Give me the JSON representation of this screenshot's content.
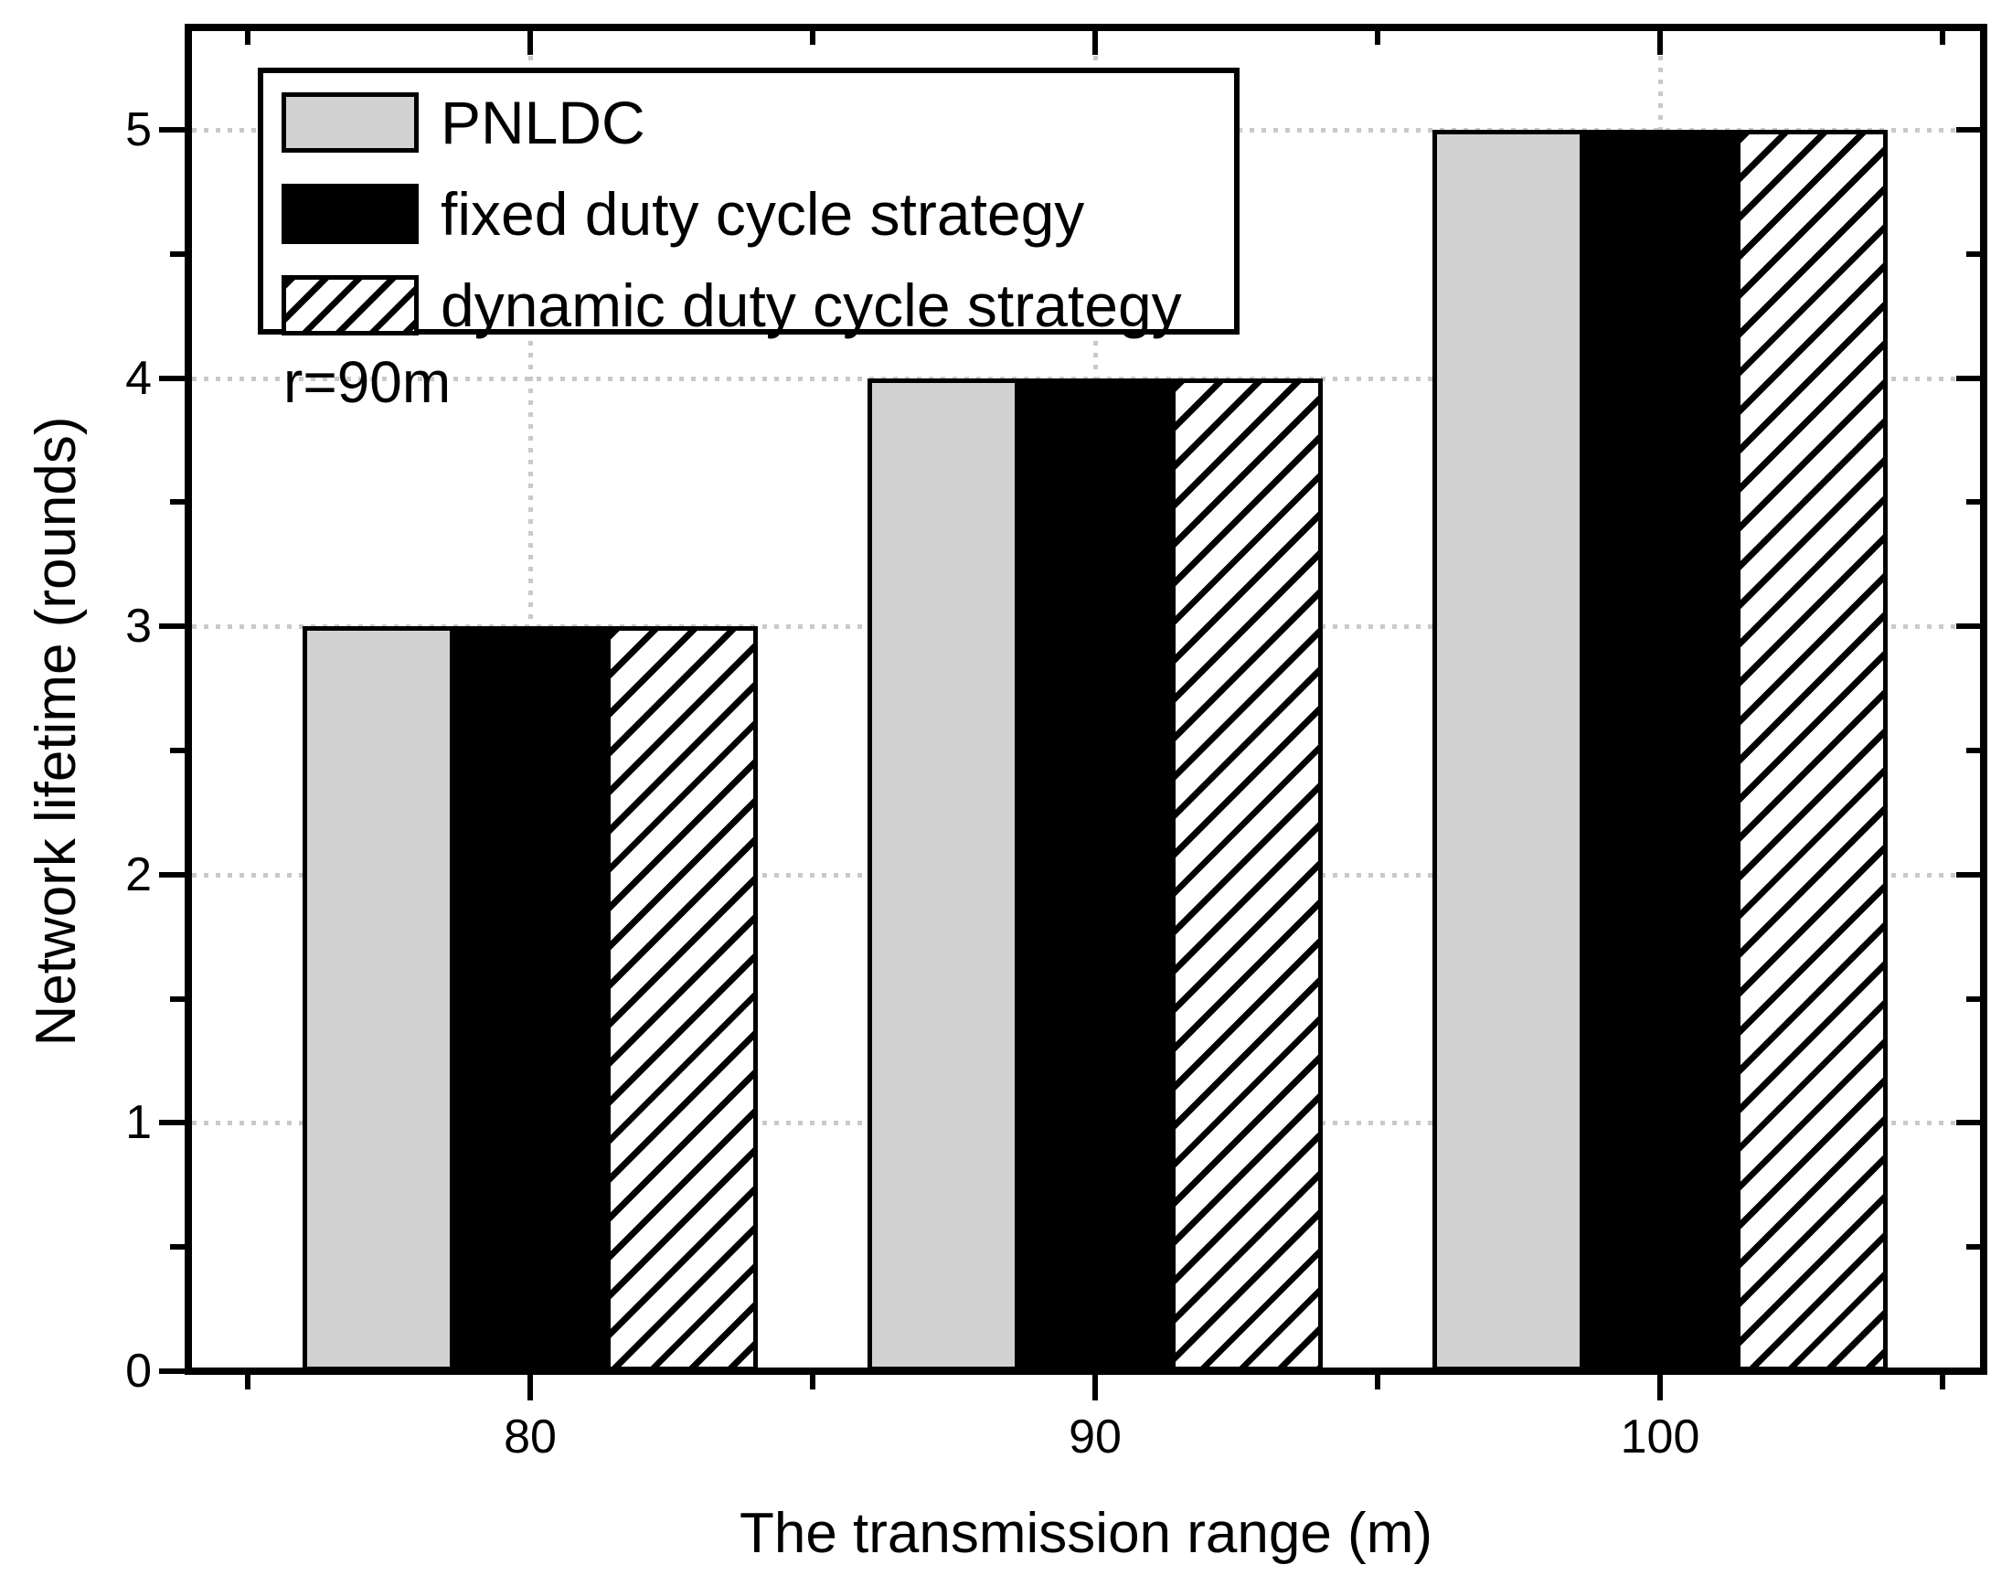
{
  "chart_data": {
    "type": "bar",
    "title": "",
    "xlabel": "The transmission range (m)",
    "ylabel": "Network lifetime (rounds)",
    "annotation": "r=90m",
    "categories": [
      "80",
      "90",
      "100"
    ],
    "series": [
      {
        "name": "PNLDC",
        "style": "gray",
        "values": [
          3,
          4,
          5
        ]
      },
      {
        "name": "fixed duty cycle strategy",
        "style": "black",
        "values": [
          3,
          4,
          5
        ]
      },
      {
        "name": "dynamic duty cycle strategy",
        "style": "hatch",
        "values": [
          3,
          4,
          5
        ]
      }
    ],
    "ylim": [
      0,
      5
    ],
    "yticks": [
      "0",
      "1",
      "2",
      "3",
      "4",
      "5"
    ],
    "y_minor_step": 0.5,
    "x_minor_ticks": true,
    "grid": "dotted",
    "legend_position": "top-left",
    "colors": {
      "gray_fill": "#d2d2d2",
      "black_fill": "#000000",
      "hatch_line": "#000000",
      "grid_dot": "#c9c9c9",
      "axis": "#000000"
    }
  }
}
